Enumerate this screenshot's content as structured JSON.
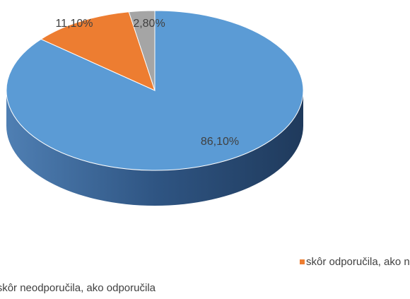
{
  "chart_data": {
    "type": "pie",
    "categories": [
      null,
      "skôr odporučila, ako neodporučila",
      "skôr neodporučila, ako odporučila"
    ],
    "values": [
      86.1,
      11.1,
      2.8
    ],
    "value_labels": [
      "86,10%",
      "11,10%",
      "2,80%"
    ],
    "colors": [
      "#5b9bd5",
      "#ed7d31",
      "#a5a5a5"
    ]
  }
}
